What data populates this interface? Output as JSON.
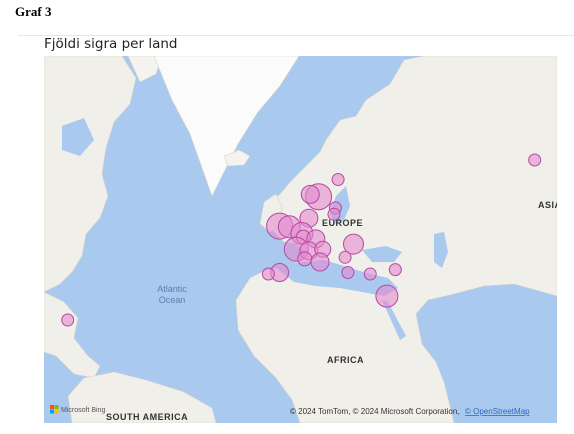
{
  "page": {
    "heading": "Graf 3",
    "visual_title": "Fjöldi sigra per land"
  },
  "map": {
    "labels": {
      "atlantic_line1": "Atlantic",
      "atlantic_line2": "Ocean",
      "europe": "EUROPE",
      "africa": "AFRICA",
      "south_america": "SOUTH AMERICA",
      "asia": "ASIA"
    },
    "attribution": {
      "provider": "Microsoft Bing",
      "copyright": "© 2024 TomTom, © 2024 Microsoft Corporation,",
      "osm_link": "© OpenStreetMap"
    },
    "colors": {
      "ocean": "#a9c9ee",
      "land": "#f1efe9",
      "ice": "#fbfbfb",
      "bubble_fill": "#e58ad0",
      "bubble_stroke": "#b54aa0"
    },
    "bubbles": [
      {
        "lon": -3.5,
        "lat": 54.0,
        "size": 13
      },
      {
        "lon": 0.0,
        "lat": 53.8,
        "size": 11
      },
      {
        "lon": 10.5,
        "lat": 61.0,
        "size": 13
      },
      {
        "lon": 7.5,
        "lat": 61.5,
        "size": 9
      },
      {
        "lon": 17.5,
        "lat": 64.5,
        "size": 6
      },
      {
        "lon": 16.5,
        "lat": 58.5,
        "size": 6
      },
      {
        "lon": 16.0,
        "lat": 57.0,
        "size": 6
      },
      {
        "lon": 7.0,
        "lat": 56.0,
        "size": 9
      },
      {
        "lon": 4.5,
        "lat": 52.0,
        "size": 11
      },
      {
        "lon": 5.0,
        "lat": 51.0,
        "size": 7
      },
      {
        "lon": 9.5,
        "lat": 50.5,
        "size": 9
      },
      {
        "lon": 2.5,
        "lat": 47.5,
        "size": 12
      },
      {
        "lon": 7.0,
        "lat": 47.0,
        "size": 9
      },
      {
        "lon": 12.0,
        "lat": 47.5,
        "size": 8
      },
      {
        "lon": 5.5,
        "lat": 44.5,
        "size": 7
      },
      {
        "lon": 11.0,
        "lat": 43.5,
        "size": 9
      },
      {
        "lon": 20.0,
        "lat": 45.0,
        "size": 6
      },
      {
        "lon": 23.0,
        "lat": 49.0,
        "size": 10
      },
      {
        "lon": -3.5,
        "lat": 40.0,
        "size": 9
      },
      {
        "lon": -7.5,
        "lat": 39.5,
        "size": 6
      },
      {
        "lon": 21.0,
        "lat": 40.0,
        "size": 6
      },
      {
        "lon": 29.0,
        "lat": 39.5,
        "size": 6
      },
      {
        "lon": 38.0,
        "lat": 41.0,
        "size": 6
      },
      {
        "lon": 35.0,
        "lat": 31.5,
        "size": 11
      },
      {
        "lon": -79.5,
        "lat": 22.0,
        "size": 6
      },
      {
        "lon": 88.0,
        "lat": 68.0,
        "size": 6
      }
    ]
  }
}
